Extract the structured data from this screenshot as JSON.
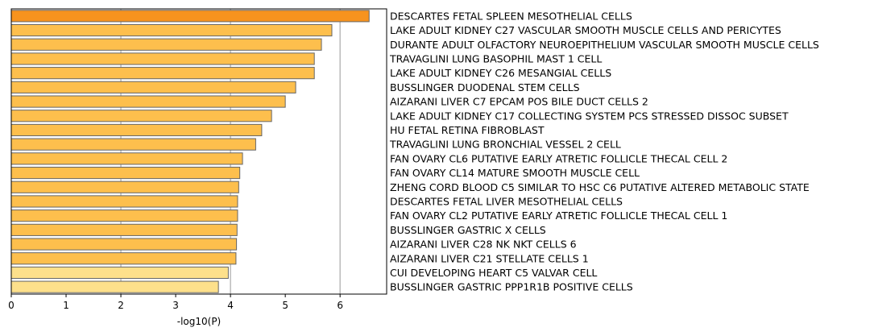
{
  "chart_data": {
    "type": "bar",
    "orientation": "horizontal",
    "categories": [
      "DESCARTES FETAL SPLEEN MESOTHELIAL CELLS",
      "LAKE ADULT KIDNEY C27 VASCULAR SMOOTH MUSCLE CELLS AND PERICYTES",
      "DURANTE ADULT OLFACTORY NEUROEPITHELIUM VASCULAR SMOOTH MUSCLE CELLS",
      "TRAVAGLINI LUNG BASOPHIL MAST 1 CELL",
      "LAKE ADULT KIDNEY C26 MESANGIAL CELLS",
      "BUSSLINGER DUODENAL STEM CELLS",
      "AIZARANI LIVER C7 EPCAM POS BILE DUCT CELLS 2",
      "LAKE ADULT KIDNEY C17 COLLECTING SYSTEM PCS STRESSED DISSOC SUBSET",
      "HU FETAL RETINA FIBROBLAST",
      "TRAVAGLINI LUNG BRONCHIAL VESSEL 2 CELL",
      "FAN OVARY CL6 PUTATIVE EARLY ATRETIC FOLLICLE THECAL CELL 2",
      "FAN OVARY CL14 MATURE SMOOTH MUSCLE CELL",
      "ZHENG CORD BLOOD C5 SIMILAR TO HSC C6 PUTATIVE ALTERED METABOLIC STATE",
      "DESCARTES FETAL LIVER MESOTHELIAL CELLS",
      "FAN OVARY CL2 PUTATIVE EARLY ATRETIC FOLLICLE THECAL CELL 1",
      "BUSSLINGER GASTRIC X CELLS",
      "AIZARANI LIVER C28 NK NKT CELLS 6",
      "AIZARANI LIVER C21 STELLATE CELLS 1",
      "CUI DEVELOPING HEART C5 VALVAR CELL",
      "BUSSLINGER GASTRIC PPP1R1B POSITIVE CELLS"
    ],
    "values": [
      6.53,
      5.85,
      5.66,
      5.53,
      5.53,
      5.19,
      5.0,
      4.75,
      4.57,
      4.46,
      4.22,
      4.17,
      4.15,
      4.13,
      4.13,
      4.12,
      4.11,
      4.1,
      3.96,
      3.78
    ],
    "colors": [
      "#f7931e",
      "#fdbf4d",
      "#fdbf4d",
      "#fdbf4d",
      "#fdbf4d",
      "#fdbf4d",
      "#fdbf4d",
      "#fdbf4d",
      "#fdbf4d",
      "#fdbf4d",
      "#fdbf4d",
      "#fdbf4d",
      "#fdbf4d",
      "#fdbf4d",
      "#fdbf4d",
      "#fdbf4d",
      "#fdbf4d",
      "#fdbf4d",
      "#fde08b",
      "#fde08b"
    ],
    "xlabel": "-log10(P)",
    "xlim": [
      0,
      6.85
    ],
    "xticks": [
      0,
      1,
      2,
      3,
      4,
      5,
      6
    ],
    "grid_lines_at": [
      2,
      4,
      6
    ],
    "grid_color": "#b0b0b0",
    "bar_edge_color": "#666666",
    "category_labels_side": "right"
  }
}
